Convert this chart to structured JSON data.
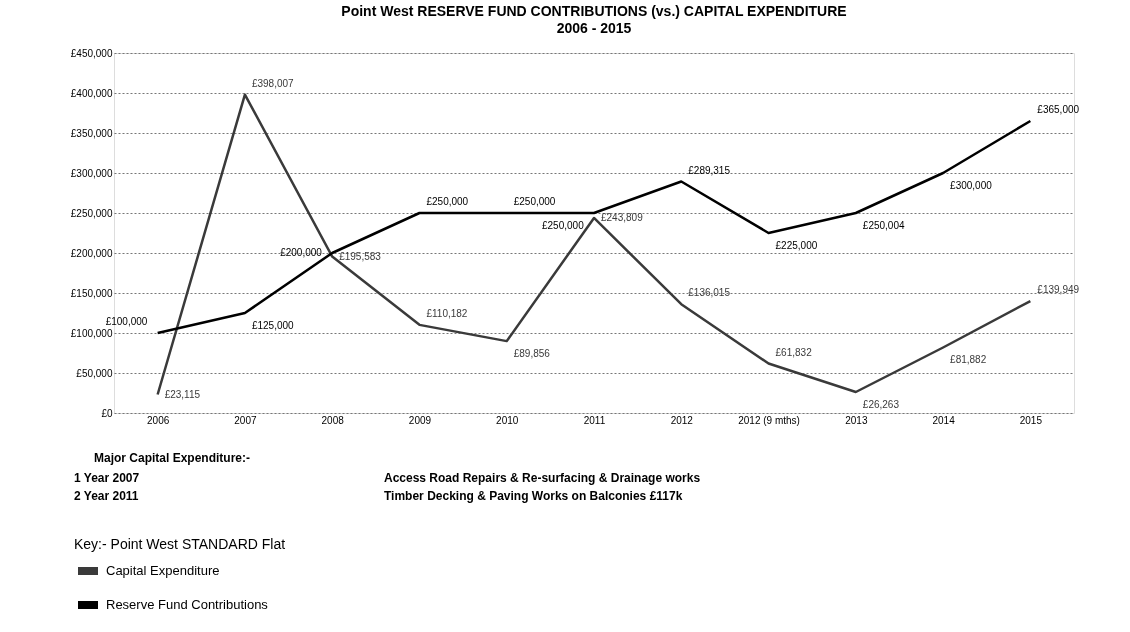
{
  "chart_data": {
    "type": "line",
    "title": "Point West    RESERVE FUND CONTRIBUTIONS (vs.) CAPITAL EXPENDITURE",
    "subtitle": "2006 - 2015",
    "categories": [
      "2006",
      "2007",
      "2008",
      "2009",
      "2010",
      "2011",
      "2012",
      "2012 (9 mths)",
      "2013",
      "2014",
      "2015"
    ],
    "series": [
      {
        "name": "Capital Expenditure",
        "color": "#3a3a3a",
        "values": [
          23115,
          398007,
          195583,
          110182,
          89856,
          243809,
          136015,
          61832,
          26263,
          81882,
          139949
        ],
        "value_labels": [
          "£23,115",
          "£398,007",
          "£195,583",
          "£110,182",
          "£89,856",
          "£243,809",
          "£136,015",
          "£61,832",
          "£26,263",
          "£81,882",
          "£139,949"
        ]
      },
      {
        "name": "Reserve Fund Contributions",
        "color": "#000000",
        "values": [
          100000,
          125000,
          200000,
          250000,
          250000,
          250000,
          289315,
          225000,
          250004,
          300000,
          365000
        ],
        "value_labels": [
          "£100,000",
          "£125,000",
          "£200,000",
          "£250,000",
          "£250,000",
          "£250,000",
          "£289,315",
          "£225,000",
          "£250,004",
          "£300,000",
          "£365,000"
        ]
      }
    ],
    "ylim": [
      0,
      450000
    ],
    "yticks": [
      {
        "value": 0,
        "label": "£0"
      },
      {
        "value": 50000,
        "label": "£50,000"
      },
      {
        "value": 100000,
        "label": "£100,000"
      },
      {
        "value": 150000,
        "label": "£150,000"
      },
      {
        "value": 200000,
        "label": "£200,000"
      },
      {
        "value": 250000,
        "label": "£250,000"
      },
      {
        "value": 300000,
        "label": "£300,000"
      },
      {
        "value": 350000,
        "label": "£350,000"
      },
      {
        "value": 400000,
        "label": "£400,000"
      },
      {
        "value": 450000,
        "label": "£450,000"
      }
    ],
    "grid": "y",
    "legend": "bottom left",
    "legend_title": "Key:- Point West  STANDARD  Flat",
    "marker": "none",
    "line_style": "solid",
    "annotations": [
      "Major Capital Expenditure:-",
      "1 Year 2007",
      "Access Road Repairs & Re-surfacing & Drainage works",
      "2 Year 2011",
      "Timber Decking & Paving Works on Balconies £117k"
    ]
  }
}
